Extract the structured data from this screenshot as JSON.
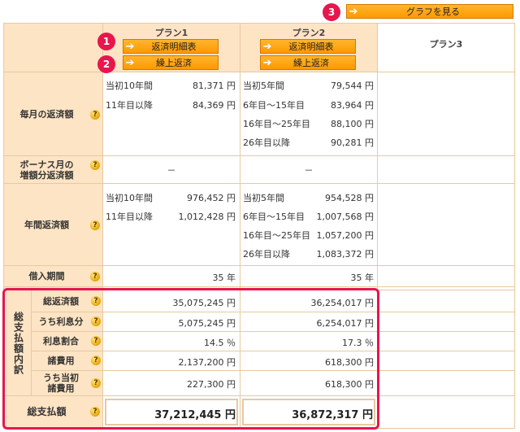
{
  "top_button": {
    "badge": "3",
    "label": "グラフを見る"
  },
  "plans": [
    {
      "name": "プラン1",
      "btn_detail": "返済明細表",
      "btn_prepay": "繰上返済",
      "badge_detail": "1",
      "badge_prepay": "2"
    },
    {
      "name": "プラン2",
      "btn_detail": "返済明細表",
      "btn_prepay": "繰上返済"
    },
    {
      "name": "プラン3"
    }
  ],
  "labels": {
    "monthly": "毎月の返済額",
    "bonus_1": "ボーナス月の",
    "bonus_2": "増額分返済額",
    "annual": "年間返済額",
    "period": "借入期間",
    "breakdown": "総支払額内訳",
    "total_repay": "総返済額",
    "interest_part": "うち利息分",
    "interest_ratio": "利息割合",
    "fees": "諸費用",
    "initial_fees_1": "うち当初",
    "initial_fees_2": "諸費用",
    "grand_total": "総支払額",
    "help": "?"
  },
  "plan1": {
    "monthly": [
      {
        "label": "当初10年間",
        "value": "81,371 円"
      },
      {
        "label": "11年目以降",
        "value": "84,369 円"
      }
    ],
    "bonus": "－",
    "annual": [
      {
        "label": "当初10年間",
        "value": "976,452 円"
      },
      {
        "label": "11年目以降",
        "value": "1,012,428 円"
      }
    ],
    "period": "35 年",
    "total_repay": "35,075,245 円",
    "interest_part": "5,075,245 円",
    "interest_ratio": "14.5 ％",
    "fees": "2,137,200 円",
    "initial_fees": "227,300 円",
    "grand_total": "37,212,445 円"
  },
  "plan2": {
    "monthly": [
      {
        "label": "当初5年間",
        "value": "79,544 円"
      },
      {
        "label": "6年目～15年目",
        "value": "83,964 円"
      },
      {
        "label": "16年目～25年目",
        "value": "88,100 円"
      },
      {
        "label": "26年目以降",
        "value": "90,281 円"
      }
    ],
    "bonus": "－",
    "annual": [
      {
        "label": "当初5年間",
        "value": "954,528 円"
      },
      {
        "label": "6年目～15年目",
        "value": "1,007,568 円"
      },
      {
        "label": "16年目～25年目",
        "value": "1,057,200 円"
      },
      {
        "label": "26年目以降",
        "value": "1,083,372 円"
      }
    ],
    "period": "35 年",
    "total_repay": "36,254,017 円",
    "interest_part": "6,254,017 円",
    "interest_ratio": "17.3 ％",
    "fees": "618,300 円",
    "initial_fees": "618,300 円",
    "grand_total": "36,872,317 円"
  },
  "colors": {
    "accent": "#ff9900",
    "highlight": "#e8164d",
    "header_bg": "#fde4c4"
  }
}
